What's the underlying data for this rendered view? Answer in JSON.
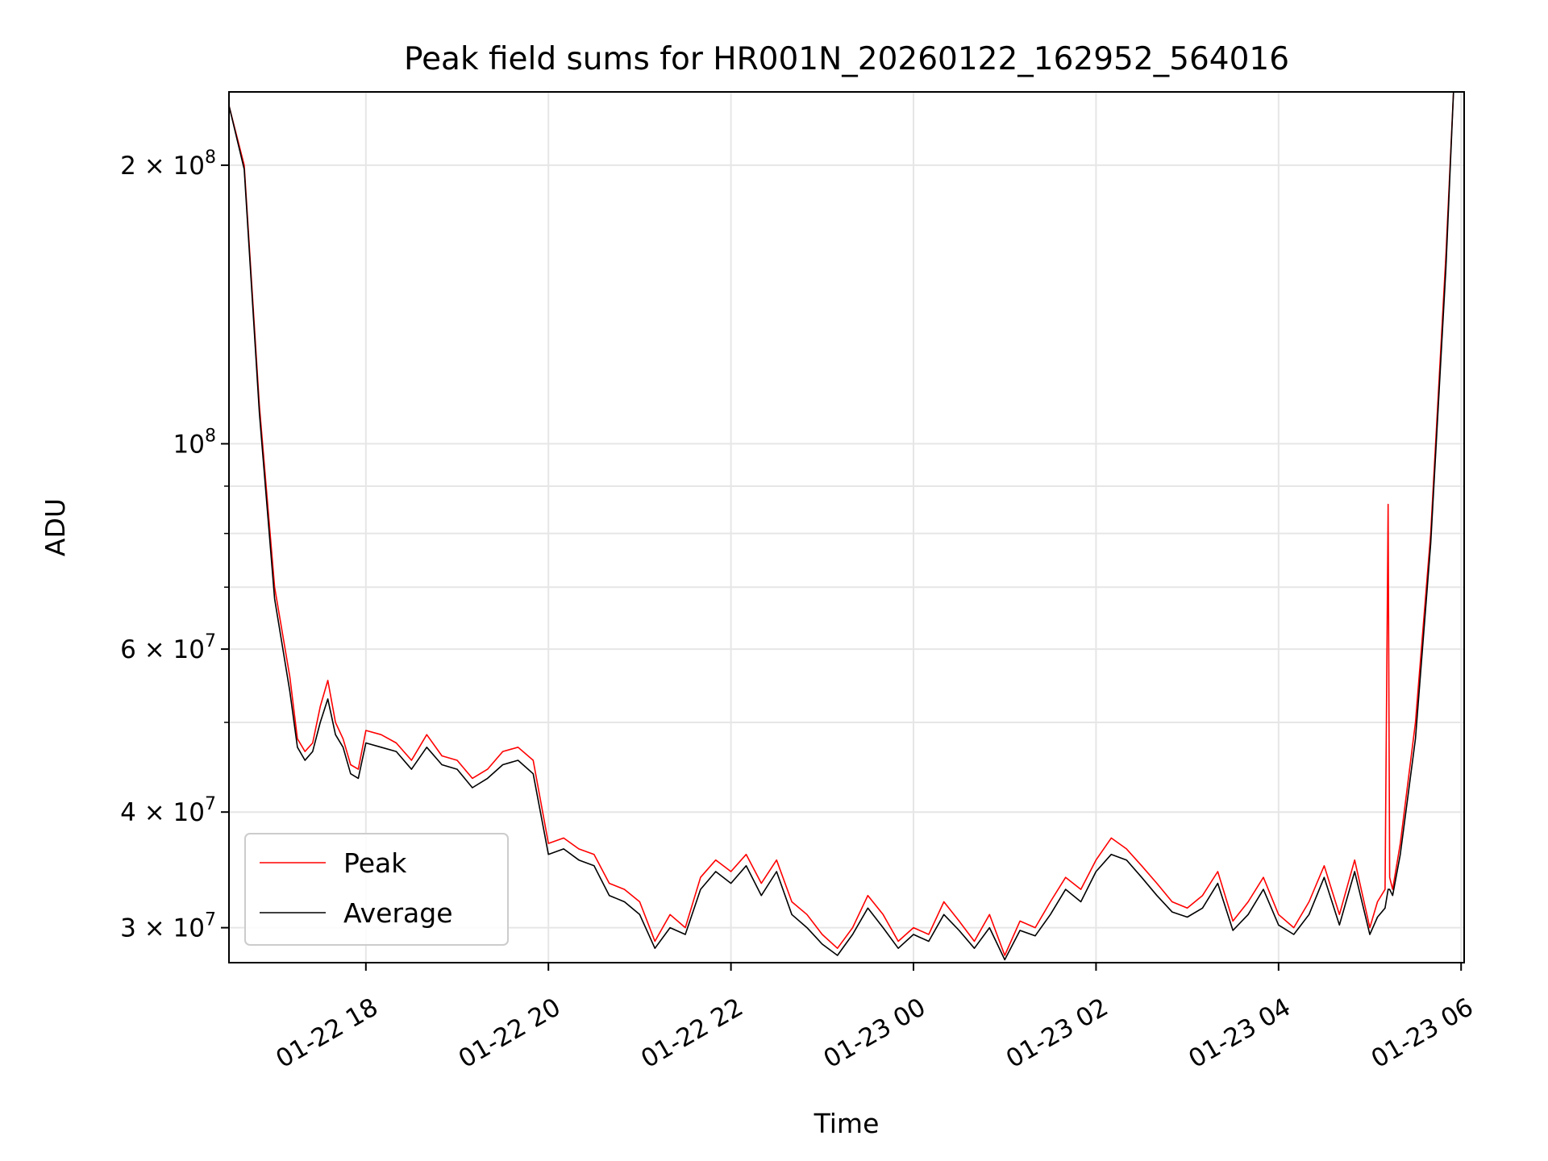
{
  "chart_data": {
    "type": "line",
    "title": "Peak field sums for HR001N_20260122_162952_564016",
    "xlabel": "Time",
    "ylabel": "ADU",
    "yscale": "log",
    "grid": true,
    "legend_position": "lower-left",
    "xlim": [
      "2026-01-22 16:30",
      "2026-01-23 06:02"
    ],
    "ylim": [
      27500000,
      240000000
    ],
    "x_ticks": [
      {
        "value": "2026-01-22 18:00",
        "label": "01-22 18"
      },
      {
        "value": "2026-01-22 20:00",
        "label": "01-22 20"
      },
      {
        "value": "2026-01-22 22:00",
        "label": "01-22 22"
      },
      {
        "value": "2026-01-23 00:00",
        "label": "01-23 00"
      },
      {
        "value": "2026-01-23 02:00",
        "label": "01-23 02"
      },
      {
        "value": "2026-01-23 04:00",
        "label": "01-23 04"
      },
      {
        "value": "2026-01-23 06:00",
        "label": "01-23 06"
      }
    ],
    "y_major_ticks": [
      {
        "value": 200000000,
        "mantissa": "2",
        "times": "×",
        "base": "10",
        "exp": "8"
      },
      {
        "value": 100000000,
        "mantissa": "",
        "times": "",
        "base": "10",
        "exp": "8"
      },
      {
        "value": 60000000,
        "mantissa": "6",
        "times": "×",
        "base": "10",
        "exp": "7"
      },
      {
        "value": 40000000,
        "mantissa": "4",
        "times": "×",
        "base": "10",
        "exp": "7"
      },
      {
        "value": 30000000,
        "mantissa": "3",
        "times": "×",
        "base": "10",
        "exp": "7"
      }
    ],
    "y_minor_ticks": [
      90000000,
      80000000,
      70000000,
      50000000
    ],
    "series": [
      {
        "name": "Peak",
        "color": "#ff0000",
        "x": [
          "2026-01-22 16:30",
          "2026-01-22 16:40",
          "2026-01-22 16:50",
          "2026-01-22 17:00",
          "2026-01-22 17:10",
          "2026-01-22 17:15",
          "2026-01-22 17:20",
          "2026-01-22 17:25",
          "2026-01-22 17:30",
          "2026-01-22 17:35",
          "2026-01-22 17:40",
          "2026-01-22 17:45",
          "2026-01-22 17:50",
          "2026-01-22 17:55",
          "2026-01-22 18:00",
          "2026-01-22 18:10",
          "2026-01-22 18:20",
          "2026-01-22 18:30",
          "2026-01-22 18:40",
          "2026-01-22 18:50",
          "2026-01-22 19:00",
          "2026-01-22 19:10",
          "2026-01-22 19:20",
          "2026-01-22 19:30",
          "2026-01-22 19:40",
          "2026-01-22 19:50",
          "2026-01-22 20:00",
          "2026-01-22 20:10",
          "2026-01-22 20:20",
          "2026-01-22 20:30",
          "2026-01-22 20:40",
          "2026-01-22 20:50",
          "2026-01-22 21:00",
          "2026-01-22 21:10",
          "2026-01-22 21:20",
          "2026-01-22 21:30",
          "2026-01-22 21:40",
          "2026-01-22 21:50",
          "2026-01-22 22:00",
          "2026-01-22 22:10",
          "2026-01-22 22:20",
          "2026-01-22 22:30",
          "2026-01-22 22:40",
          "2026-01-22 22:50",
          "2026-01-22 23:00",
          "2026-01-22 23:10",
          "2026-01-22 23:20",
          "2026-01-22 23:30",
          "2026-01-22 23:40",
          "2026-01-22 23:50",
          "2026-01-23 00:00",
          "2026-01-23 00:10",
          "2026-01-23 00:20",
          "2026-01-23 00:30",
          "2026-01-23 00:40",
          "2026-01-23 00:50",
          "2026-01-23 01:00",
          "2026-01-23 01:10",
          "2026-01-23 01:20",
          "2026-01-23 01:30",
          "2026-01-23 01:40",
          "2026-01-23 01:50",
          "2026-01-23 02:00",
          "2026-01-23 02:10",
          "2026-01-23 02:20",
          "2026-01-23 02:30",
          "2026-01-23 02:40",
          "2026-01-23 02:50",
          "2026-01-23 03:00",
          "2026-01-23 03:10",
          "2026-01-23 03:20",
          "2026-01-23 03:30",
          "2026-01-23 03:40",
          "2026-01-23 03:50",
          "2026-01-23 04:00",
          "2026-01-23 04:10",
          "2026-01-23 04:20",
          "2026-01-23 04:30",
          "2026-01-23 04:40",
          "2026-01-23 04:50",
          "2026-01-23 05:00",
          "2026-01-23 05:05",
          "2026-01-23 05:10",
          "2026-01-23 05:12",
          "2026-01-23 05:13",
          "2026-01-23 05:15",
          "2026-01-23 05:20",
          "2026-01-23 05:30",
          "2026-01-23 05:40",
          "2026-01-23 05:50",
          "2026-01-23 05:55"
        ],
        "y": [
          232000000,
          200000000,
          110000000,
          70000000,
          56000000,
          48000000,
          46500000,
          47500000,
          52000000,
          55500000,
          50000000,
          48000000,
          45000000,
          44500000,
          49000000,
          48500000,
          47500000,
          45500000,
          48500000,
          46000000,
          45500000,
          43500000,
          44500000,
          46500000,
          47000000,
          45500000,
          37000000,
          37500000,
          36500000,
          36000000,
          33500000,
          33000000,
          32000000,
          29000000,
          31000000,
          30000000,
          34000000,
          35500000,
          34500000,
          36000000,
          33500000,
          35500000,
          32000000,
          31000000,
          29500000,
          28500000,
          30000000,
          32500000,
          31000000,
          29000000,
          30000000,
          29500000,
          32000000,
          30500000,
          29000000,
          31000000,
          28000000,
          30500000,
          30000000,
          32000000,
          34000000,
          33000000,
          35500000,
          37500000,
          36500000,
          35000000,
          33500000,
          32000000,
          31500000,
          32500000,
          34500000,
          30500000,
          32000000,
          34000000,
          31000000,
          30000000,
          32000000,
          35000000,
          31000000,
          35500000,
          30000000,
          32000000,
          33000000,
          86000000,
          34000000,
          33000000,
          37000000,
          50000000,
          80000000,
          160000000,
          240000000
        ]
      },
      {
        "name": "Average",
        "color": "#000000",
        "x": [
          "2026-01-22 16:30",
          "2026-01-22 16:40",
          "2026-01-22 16:50",
          "2026-01-22 17:00",
          "2026-01-22 17:10",
          "2026-01-22 17:15",
          "2026-01-22 17:20",
          "2026-01-22 17:25",
          "2026-01-22 17:30",
          "2026-01-22 17:35",
          "2026-01-22 17:40",
          "2026-01-22 17:45",
          "2026-01-22 17:50",
          "2026-01-22 17:55",
          "2026-01-22 18:00",
          "2026-01-22 18:10",
          "2026-01-22 18:20",
          "2026-01-22 18:30",
          "2026-01-22 18:40",
          "2026-01-22 18:50",
          "2026-01-22 19:00",
          "2026-01-22 19:10",
          "2026-01-22 19:20",
          "2026-01-22 19:30",
          "2026-01-22 19:40",
          "2026-01-22 19:50",
          "2026-01-22 20:00",
          "2026-01-22 20:10",
          "2026-01-22 20:20",
          "2026-01-22 20:30",
          "2026-01-22 20:40",
          "2026-01-22 20:50",
          "2026-01-22 21:00",
          "2026-01-22 21:10",
          "2026-01-22 21:20",
          "2026-01-22 21:30",
          "2026-01-22 21:40",
          "2026-01-22 21:50",
          "2026-01-22 22:00",
          "2026-01-22 22:10",
          "2026-01-22 22:20",
          "2026-01-22 22:30",
          "2026-01-22 22:40",
          "2026-01-22 22:50",
          "2026-01-22 23:00",
          "2026-01-22 23:10",
          "2026-01-22 23:20",
          "2026-01-22 23:30",
          "2026-01-22 23:40",
          "2026-01-22 23:50",
          "2026-01-23 00:00",
          "2026-01-23 00:10",
          "2026-01-23 00:20",
          "2026-01-23 00:30",
          "2026-01-23 00:40",
          "2026-01-23 00:50",
          "2026-01-23 01:00",
          "2026-01-23 01:10",
          "2026-01-23 01:20",
          "2026-01-23 01:30",
          "2026-01-23 01:40",
          "2026-01-23 01:50",
          "2026-01-23 02:00",
          "2026-01-23 02:10",
          "2026-01-23 02:20",
          "2026-01-23 02:30",
          "2026-01-23 02:40",
          "2026-01-23 02:50",
          "2026-01-23 03:00",
          "2026-01-23 03:10",
          "2026-01-23 03:20",
          "2026-01-23 03:30",
          "2026-01-23 03:40",
          "2026-01-23 03:50",
          "2026-01-23 04:00",
          "2026-01-23 04:10",
          "2026-01-23 04:20",
          "2026-01-23 04:30",
          "2026-01-23 04:40",
          "2026-01-23 04:50",
          "2026-01-23 05:00",
          "2026-01-23 05:05",
          "2026-01-23 05:10",
          "2026-01-23 05:12",
          "2026-01-23 05:13",
          "2026-01-23 05:15",
          "2026-01-23 05:20",
          "2026-01-23 05:30",
          "2026-01-23 05:40",
          "2026-01-23 05:50",
          "2026-01-23 05:55"
        ],
        "y": [
          232000000,
          198000000,
          108000000,
          68000000,
          54000000,
          47000000,
          45500000,
          46500000,
          50000000,
          53000000,
          48500000,
          47000000,
          44000000,
          43500000,
          47500000,
          47000000,
          46500000,
          44500000,
          47000000,
          45000000,
          44500000,
          42500000,
          43500000,
          45000000,
          45500000,
          44000000,
          36000000,
          36500000,
          35500000,
          35000000,
          32500000,
          32000000,
          31000000,
          28500000,
          30000000,
          29500000,
          33000000,
          34500000,
          33500000,
          35000000,
          32500000,
          34500000,
          31000000,
          30000000,
          28800000,
          28000000,
          29500000,
          31500000,
          30000000,
          28500000,
          29500000,
          29000000,
          31000000,
          29800000,
          28500000,
          30000000,
          27700000,
          29800000,
          29400000,
          31000000,
          33000000,
          32000000,
          34500000,
          36000000,
          35500000,
          34000000,
          32500000,
          31200000,
          30800000,
          31500000,
          33500000,
          29800000,
          31000000,
          33000000,
          30200000,
          29500000,
          31000000,
          34000000,
          30200000,
          34500000,
          29500000,
          30800000,
          31500000,
          33000000,
          33000000,
          32500000,
          36000000,
          48000000,
          78000000,
          155000000,
          240000000
        ]
      }
    ]
  }
}
